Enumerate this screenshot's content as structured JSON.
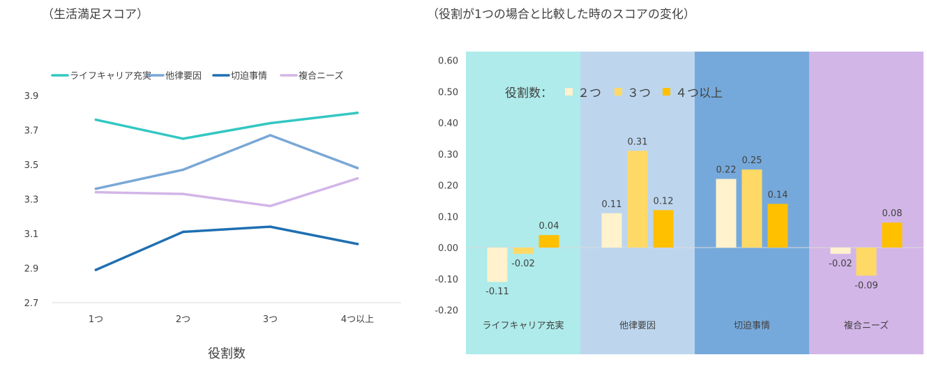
{
  "chart_data": [
    {
      "type": "line",
      "title": "（生活満足スコア）",
      "xlabel": "役割数",
      "ylabel": "",
      "categories": [
        "1つ",
        "2つ",
        "3つ",
        "4つ以上"
      ],
      "ylim": [
        2.7,
        3.9
      ],
      "yticks": [
        2.7,
        2.9,
        3.1,
        3.3,
        3.5,
        3.7,
        3.9
      ],
      "ytick_labels": [
        "2.7",
        "2.9",
        "3.1",
        "3.3",
        "3.5",
        "3.7",
        "3.9"
      ],
      "grid": false,
      "legend": "top",
      "series": [
        {
          "name": "ライフキャリア充実",
          "color": "#33C7C2",
          "values": [
            3.76,
            3.65,
            3.74,
            3.8
          ]
        },
        {
          "name": "他律要因",
          "color": "#79A7D6",
          "values": [
            3.36,
            3.47,
            3.67,
            3.48
          ]
        },
        {
          "name": "切迫事情",
          "color": "#1F6FB2",
          "values": [
            2.89,
            3.11,
            3.14,
            3.04
          ]
        },
        {
          "name": "複合ニーズ",
          "color": "#D2B5E8",
          "values": [
            3.34,
            3.33,
            3.26,
            3.42
          ]
        }
      ]
    },
    {
      "type": "bar",
      "title": "（役割が1つの場合と比較した時のスコアの変化）",
      "xlabel": "",
      "ylabel": "",
      "categories": [
        "ライフキャリア充実",
        "他律要因",
        "切迫事情",
        "複合ニーズ"
      ],
      "category_colors": [
        "#AEEBEA",
        "#BDD6EE",
        "#76A9DB",
        "#D3B6E8"
      ],
      "ylim": [
        -0.2,
        0.6
      ],
      "yticks": [
        -0.2,
        -0.1,
        0.0,
        0.1,
        0.2,
        0.3,
        0.4,
        0.5,
        0.6
      ],
      "ytick_labels": [
        "-0.20",
        "-0.10",
        "0.00",
        "0.10",
        "0.20",
        "0.30",
        "0.40",
        "0.50",
        "0.60"
      ],
      "grid": false,
      "legend": "top-left",
      "legend_title": "役割数：",
      "series": [
        {
          "name": "２つ",
          "color": "#FFF2CC",
          "values": [
            -0.11,
            0.11,
            0.22,
            -0.02
          ],
          "labels": [
            "-0.11",
            "0.11",
            "0.22",
            "-0.02"
          ]
        },
        {
          "name": "３つ",
          "color": "#FFD966",
          "values": [
            -0.02,
            0.31,
            0.25,
            -0.09
          ],
          "labels": [
            "-0.02",
            "0.31",
            "0.25",
            "-0.09"
          ]
        },
        {
          "name": "４つ以上",
          "color": "#FFC000",
          "values": [
            0.04,
            0.12,
            0.14,
            0.08
          ],
          "labels": [
            "0.04",
            "0.12",
            "0.14",
            "0.08"
          ]
        }
      ]
    }
  ]
}
